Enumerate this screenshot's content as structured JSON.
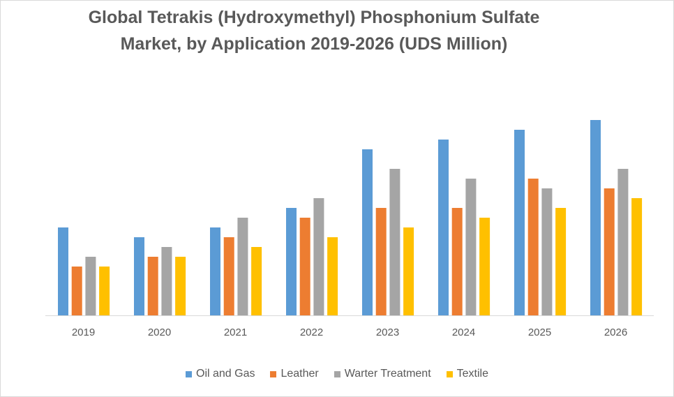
{
  "chart_data": {
    "type": "bar",
    "title": "Global  Tetrakis (Hydroxymethyl) Phosphonium Sulfate Market, by Application 2019-2026 (UDS Million)",
    "title_lines": [
      "Global  Tetrakis (Hydroxymethyl) Phosphonium Sulfate",
      "Market, by Application 2019-2026 (UDS Million)"
    ],
    "xlabel": "",
    "ylabel": "",
    "ylim": [
      0,
      20
    ],
    "grid": false,
    "legend_position": "bottom",
    "categories": [
      "2019",
      "2020",
      "2021",
      "2022",
      "2023",
      "2024",
      "2025",
      "2026"
    ],
    "series": [
      {
        "name": "Oil and Gas",
        "color": "#5b9bd5",
        "values": [
          9,
          8,
          9,
          11,
          17,
          18,
          19,
          20
        ]
      },
      {
        "name": "Leather",
        "color": "#ed7d31",
        "values": [
          5,
          6,
          8,
          10,
          11,
          11,
          14,
          13
        ]
      },
      {
        "name": "Warter Treatment",
        "color": "#a5a5a5",
        "values": [
          6,
          7,
          10,
          12,
          15,
          14,
          13,
          15
        ]
      },
      {
        "name": "Textile",
        "color": "#ffc000",
        "values": [
          5,
          6,
          7,
          8,
          9,
          10,
          11,
          12
        ]
      }
    ]
  }
}
